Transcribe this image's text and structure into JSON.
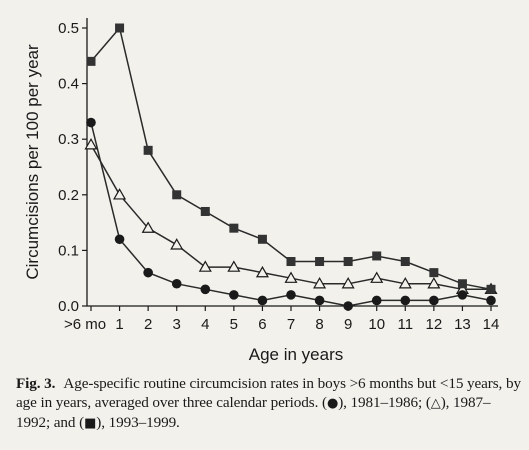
{
  "chart_data": {
    "type": "line",
    "title": "",
    "xlabel": "Age in years",
    "ylabel": "Circumcisions per 100 per year",
    "categories": [
      ">6 mo",
      "1",
      "2",
      "3",
      "4",
      "5",
      "6",
      "7",
      "8",
      "9",
      "10",
      "11",
      "12",
      "13",
      "14"
    ],
    "ylim": [
      0,
      0.5
    ],
    "yticks": [
      "0.0",
      "0.1",
      "0.2",
      "0.3",
      "0.4",
      "0.5"
    ],
    "grid": false,
    "legend": "none",
    "series": [
      {
        "marker": "filled-circle",
        "values": [
          0.33,
          0.12,
          0.06,
          0.04,
          0.03,
          0.02,
          0.01,
          0.02,
          0.01,
          0.0,
          0.01,
          0.01,
          0.01,
          0.02,
          0.01
        ]
      },
      {
        "marker": "open-triangle",
        "values": [
          0.29,
          0.2,
          0.14,
          0.11,
          0.07,
          0.07,
          0.06,
          0.05,
          0.04,
          0.04,
          0.05,
          0.04,
          0.04,
          0.03,
          0.03
        ]
      },
      {
        "marker": "filled-square",
        "values": [
          0.44,
          0.5,
          0.28,
          0.2,
          0.17,
          0.14,
          0.12,
          0.08,
          0.08,
          0.08,
          0.09,
          0.08,
          0.06,
          0.04,
          0.03
        ]
      }
    ]
  },
  "caption": {
    "label": "Fig. 3.",
    "text_1": "Age-specific routine circumcision rates in boys >6 months but <15 years, by age in years, averaged over three calendar periods. (",
    "text_2": "), 1981–1986; (",
    "text_3": "), 1987–1992; and (",
    "text_4": "), 1993–1999.",
    "glyph_circle": "●",
    "glyph_triangle": "△",
    "glyph_square": "■"
  },
  "colors": {
    "background": "#f2f1ec",
    "ink": "#1a1a1a"
  }
}
